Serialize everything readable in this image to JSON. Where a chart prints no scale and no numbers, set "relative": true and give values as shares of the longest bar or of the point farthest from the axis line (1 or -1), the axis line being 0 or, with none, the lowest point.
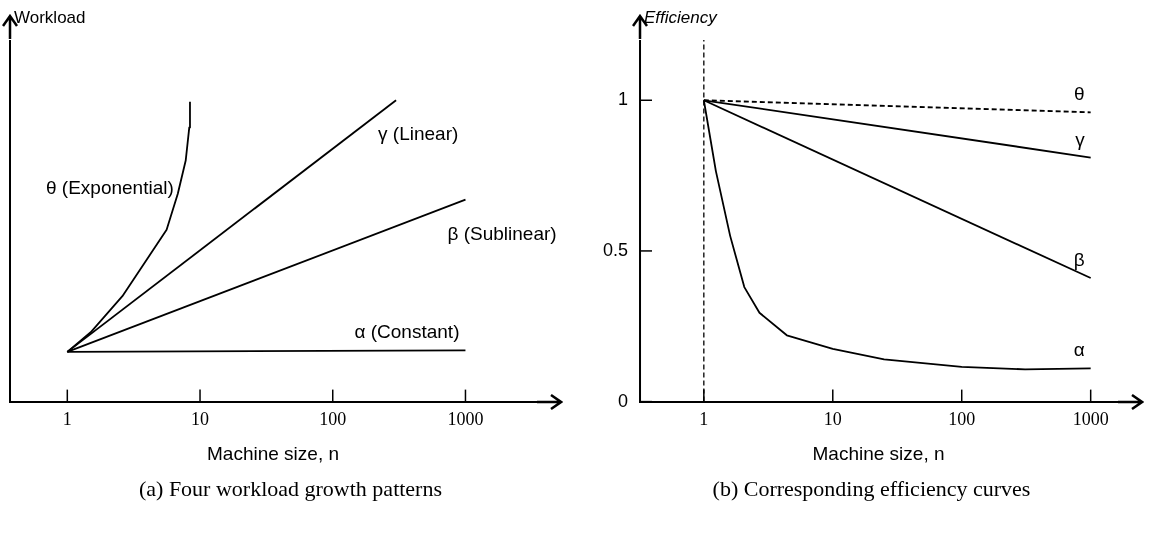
{
  "chart_data": [
    {
      "type": "line",
      "title": "(a) Four workload growth patterns",
      "xlabel": "Machine size, n",
      "ylabel": "Workload",
      "relative": true,
      "log": "x",
      "xlim": [
        0.37,
        3400
      ],
      "xticks": [
        1,
        10,
        100,
        1000
      ],
      "tick_labels": "x",
      "grid": false,
      "legend": false,
      "marker": "none",
      "series": [
        {
          "name": "θ (Exponential)",
          "color": "#000000",
          "x": [
            1,
            1.5,
            2.6,
            5.6,
            6.8,
            7.8,
            8.3,
            8.4
          ],
          "values": [
            0.165,
            0.23,
            0.35,
            0.57,
            0.69,
            0.8,
            0.91,
            0.995
          ]
        },
        {
          "name": "γ (Linear)",
          "color": "#000000",
          "x": [
            1,
            300
          ],
          "values": [
            0.165,
            1
          ]
        },
        {
          "name": "β (Sublinear)",
          "color": "#000000",
          "x": [
            1,
            1000
          ],
          "values": [
            0.165,
            0.67
          ]
        },
        {
          "name": "α (Constant)",
          "color": "#000000",
          "x": [
            1,
            1000
          ],
          "values": [
            0.165,
            0.17
          ]
        }
      ]
    },
    {
      "type": "line",
      "title": "(b) Corresponding efficiency curves",
      "xlabel": "Machine size, n",
      "ylabel": "Efficiency",
      "log": "x",
      "xlim": [
        0.32,
        1600
      ],
      "xticks": [
        1,
        10,
        100,
        1000
      ],
      "ylim": [
        0,
        1.2
      ],
      "yticks": [
        0,
        0.5,
        1
      ],
      "grid": false,
      "legend": false,
      "marker": "none",
      "ref_lines": [
        {
          "axis": "x",
          "value": 1,
          "line_style": "dashed",
          "color": "#000000"
        }
      ],
      "series": [
        {
          "name": "θ",
          "color": "#000000",
          "line_style": "dashed",
          "x": [
            1,
            1000
          ],
          "values": [
            1,
            0.96
          ]
        },
        {
          "name": "γ",
          "color": "#000000",
          "x": [
            1,
            1000
          ],
          "values": [
            1,
            0.81
          ]
        },
        {
          "name": "β",
          "color": "#000000",
          "x": [
            1,
            1000
          ],
          "values": [
            1,
            0.41
          ]
        },
        {
          "name": "α",
          "color": "#000000",
          "x": [
            1,
            1.24,
            1.6,
            2.06,
            2.7,
            4.4,
            10,
            25,
            100,
            310,
            1000
          ],
          "values": [
            1,
            0.765,
            0.55,
            0.38,
            0.295,
            0.22,
            0.175,
            0.14,
            0.115,
            0.107,
            0.11
          ]
        }
      ]
    }
  ]
}
